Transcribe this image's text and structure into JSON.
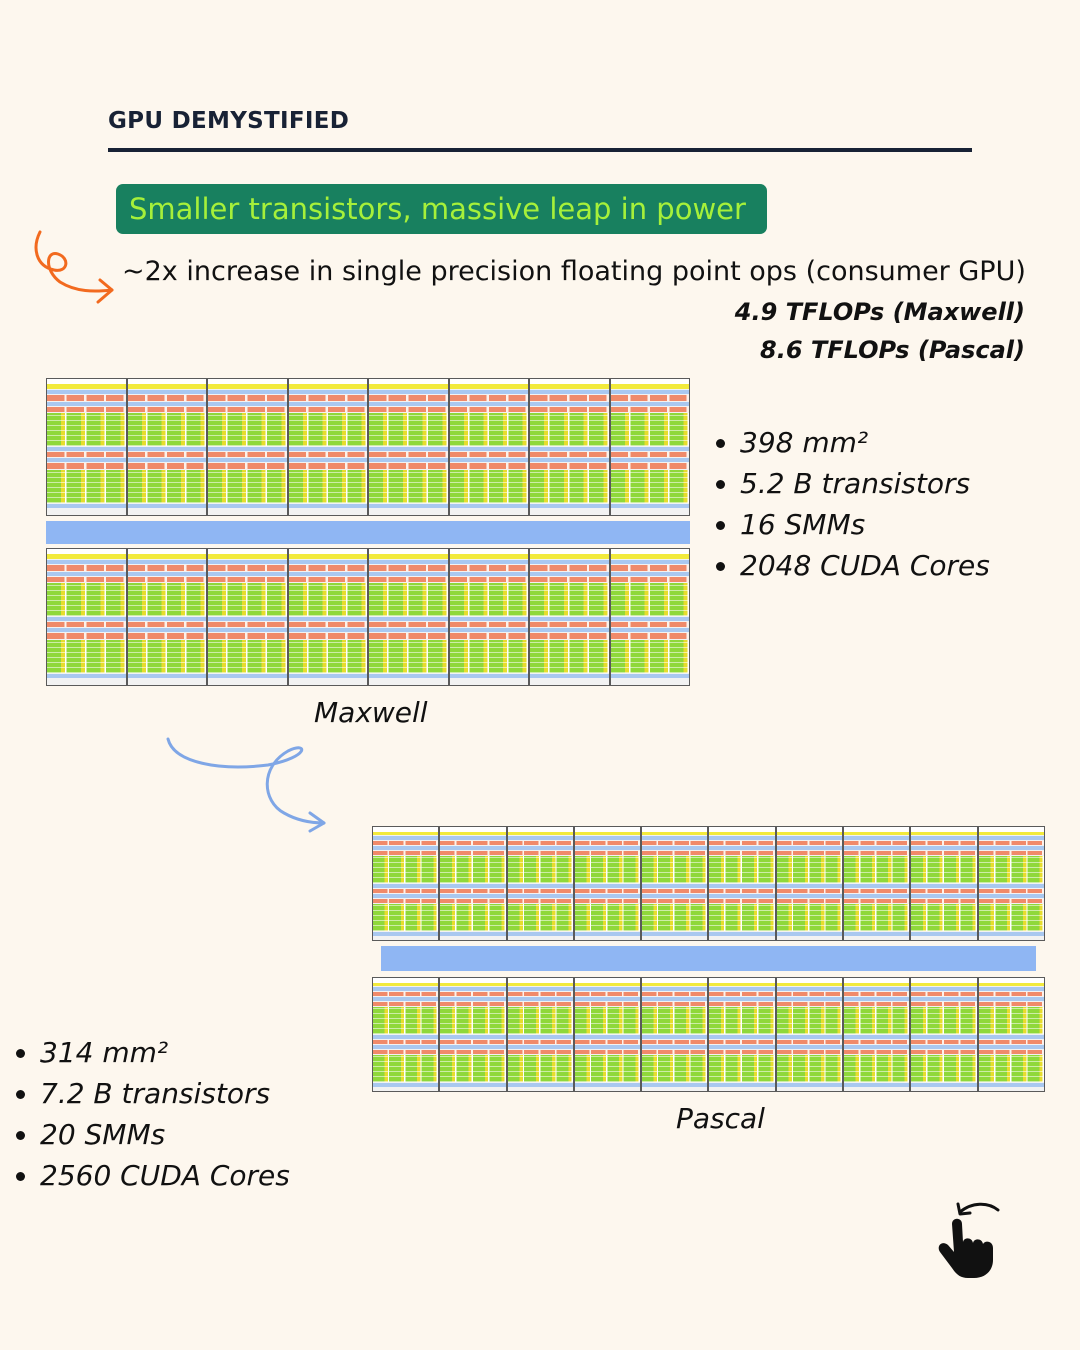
{
  "series_title": "GPU DEMYSTIFIED",
  "banner_text": "Smaller transistors, massive leap in power",
  "headline": "~2x increase in single precision floating point ops (consumer GPU)",
  "flops": [
    "4.9 TFLOPs (Maxwell)",
    "8.6 TFLOPs (Pascal)"
  ],
  "maxwell": {
    "caption": "Maxwell",
    "specs": [
      "398 mm²",
      "5.2 B transistors",
      "16 SMMs",
      "2048 CUDA Cores"
    ],
    "sm_blocks_per_row": 8,
    "sm_label": "SMM"
  },
  "pascal": {
    "caption": "Pascal",
    "specs": [
      "314 mm²",
      "7.2 B transistors",
      "20 SMMs",
      "2560 CUDA Cores"
    ],
    "sm_blocks_per_row": 10,
    "sm_label": "SMM"
  },
  "icons": {
    "orange_arrow": "curly-arrow-right-icon",
    "blue_arrow": "curly-arrow-down-right-icon",
    "swipe": "swipe-hand-icon"
  },
  "colors": {
    "background": "#fdf7ee",
    "banner_bg": "#18805f",
    "banner_text": "#a6f03a",
    "orange_arrow": "#f26a1f",
    "blue_arrow": "#7fa6e6",
    "bus": "#8fb6f3",
    "title": "#182235"
  }
}
